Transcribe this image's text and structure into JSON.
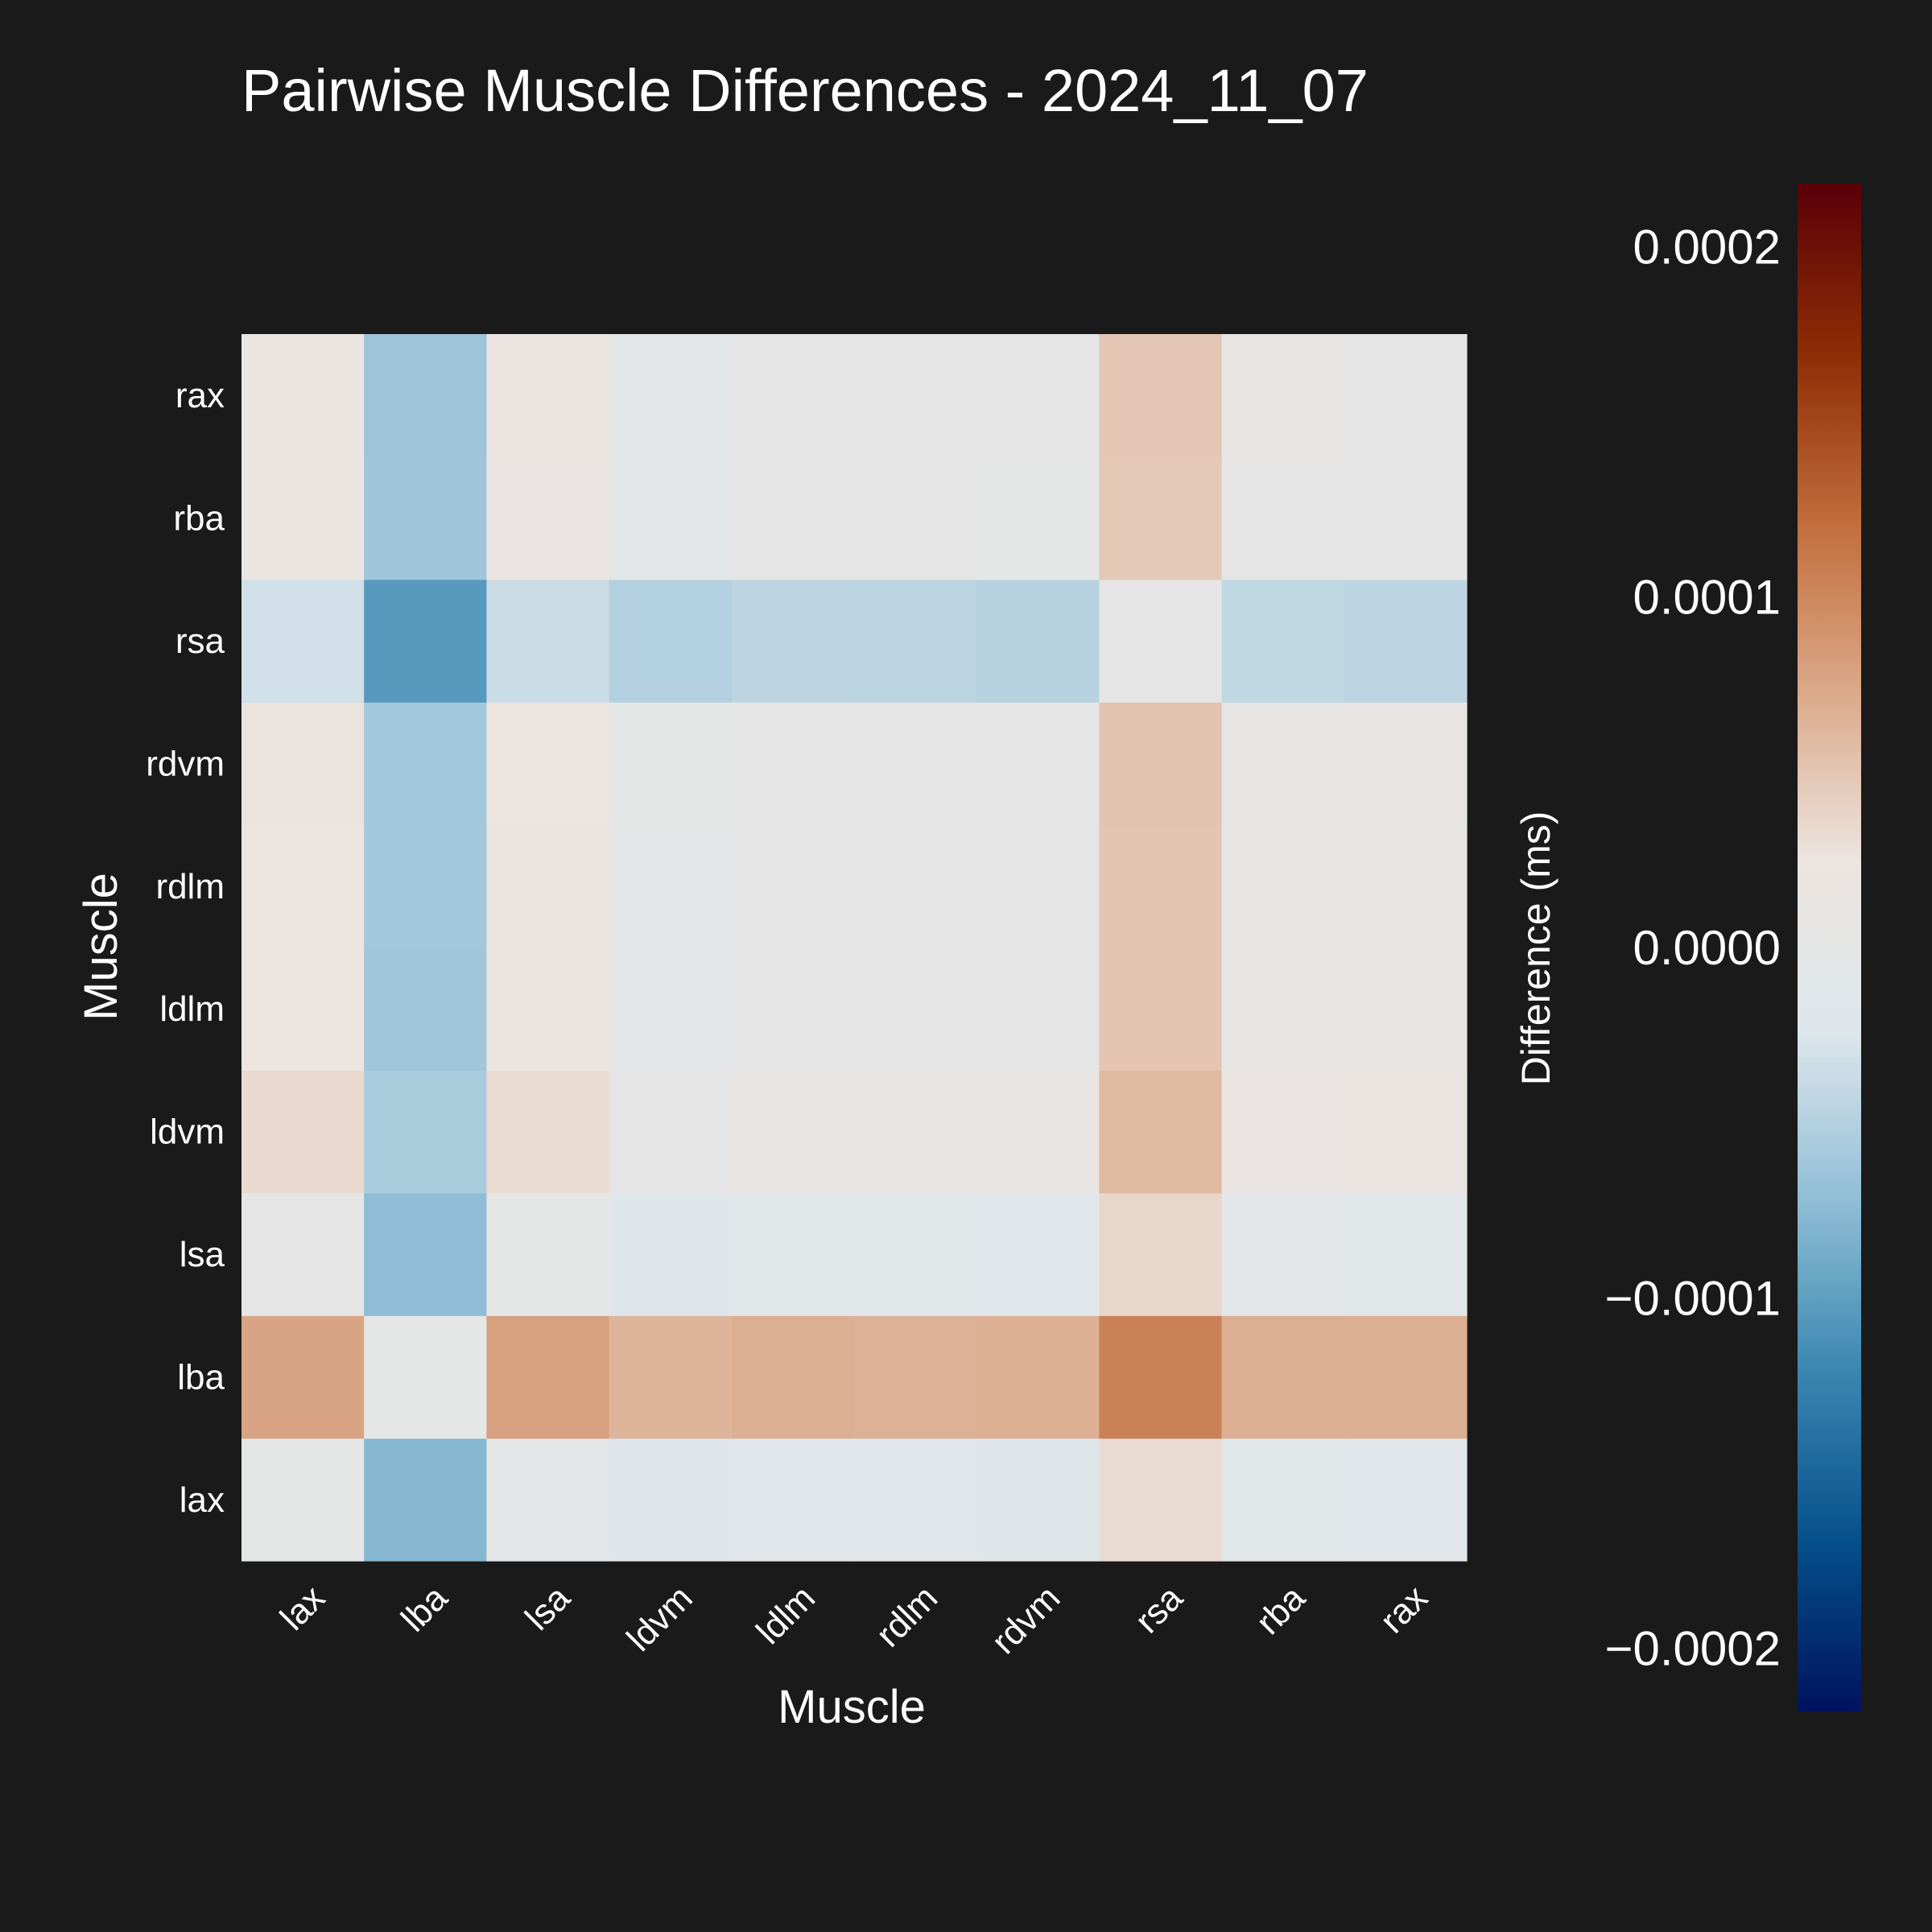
{
  "chart_data": {
    "type": "heatmap",
    "title": "Pairwise Muscle Differences - 2024_11_07",
    "xlabel": "Muscle",
    "ylabel": "Muscle",
    "x_categories": [
      "lax",
      "lba",
      "lsa",
      "ldvm",
      "ldlm",
      "rdlm",
      "rdvm",
      "rsa",
      "rba",
      "rax"
    ],
    "y_categories": [
      "lax",
      "lba",
      "lsa",
      "ldvm",
      "ldlm",
      "rdlm",
      "rdvm",
      "rsa",
      "rba",
      "rax"
    ],
    "values": [
      [
        0.0,
        -7.7e-05,
        -3e-06,
        -2e-05,
        -1.6e-05,
        -1.6e-05,
        -1.7e-05,
        3.2e-05,
        -1.2e-05,
        -1.4e-05
      ],
      [
        7.7e-05,
        0.0,
        8e-05,
        6.3e-05,
        6.8e-05,
        6.6e-05,
        6.7e-05,
        0.000105,
        6.8e-05,
        6.8e-05
      ],
      [
        3e-06,
        -7.3e-05,
        0.0,
        -1.7e-05,
        -1.2e-05,
        -1.2e-05,
        -1.4e-05,
        3.6e-05,
        -9e-06,
        -1e-05
      ],
      [
        3.4e-05,
        -5.5e-05,
        3.2e-05,
        5e-06,
        1.3e-05,
        1.2e-05,
        1.2e-05,
        6e-05,
        1.7e-05,
        1.9e-05
      ],
      [
        2.3e-05,
        -6.2e-05,
        2.2e-05,
        -3e-06,
        4e-06,
        3e-06,
        2e-06,
        5e-05,
        7e-06,
        8e-06
      ],
      [
        2.3e-05,
        -6e-05,
        2.2e-05,
        -3e-06,
        4e-06,
        3e-06,
        2e-06,
        5e-05,
        7e-06,
        8e-06
      ],
      [
        2.6e-05,
        -6e-05,
        2.4e-05,
        -1e-06,
        6e-06,
        5e-06,
        4e-06,
        5.2e-05,
        9e-06,
        1e-05
      ],
      [
        -3.2e-05,
        -0.000105,
        -3.6e-05,
        -5e-05,
        -4.5e-05,
        -4.6e-05,
        -4.8e-05,
        3e-06,
        -4.2e-05,
        -4.4e-05
      ],
      [
        2e-05,
        -6.3e-05,
        1.8e-05,
        -5e-06,
        2e-06,
        1e-06,
        0.0,
        4.8e-05,
        6e-06,
        4e-06
      ],
      [
        2.1e-05,
        -6.4e-05,
        1.9e-05,
        -4e-06,
        3e-06,
        2e-06,
        1e-06,
        4.9e-05,
        7e-06,
        5e-06
      ]
    ],
    "colorbar": {
      "label": "Difference (ms)",
      "min": -0.000218,
      "max": 0.000218,
      "ticks": [
        0.0002,
        0.0001,
        0.0,
        -0.0001,
        -0.0002
      ],
      "tick_labels": [
        "0.0002",
        "0.0001",
        "0.0000",
        "−0.0001",
        "−0.0002"
      ],
      "colormap": "vik",
      "color_stops": [
        "#001260",
        "#05508c",
        "#3987b0",
        "#8fbdd5",
        "#dde6ec",
        "#ece5e0",
        "#dba98a",
        "#c16d3b",
        "#8d2d06",
        "#590008"
      ]
    },
    "background": "#1a1a1a",
    "grid": false
  }
}
